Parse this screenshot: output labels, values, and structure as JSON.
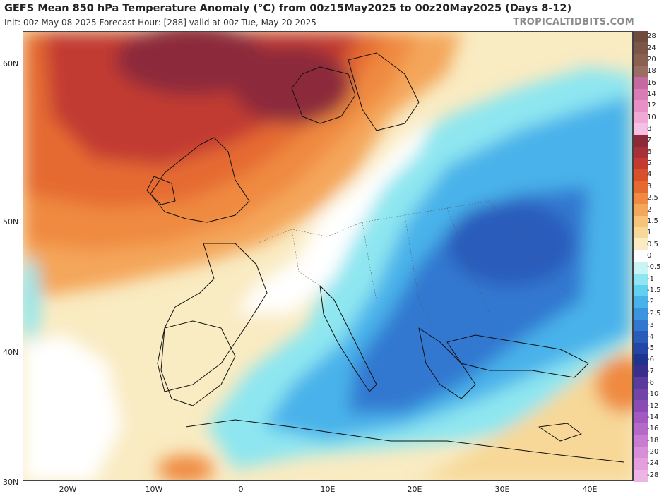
{
  "header": {
    "title": "GEFS Mean 850 hPa Temperature Anomaly (°C) from 00z15May2025 to 00z20May2025 (Days 8-12)",
    "subtitle": "Init: 00z May 08 2025   Forecast Hour: [288]   valid at 00z Tue, May 20 2025",
    "brand": "TROPICALTIDBITS.COM"
  },
  "axes": {
    "lat_labels": [
      "60N",
      "50N",
      "40N",
      "30N"
    ],
    "lon_labels": [
      "20W",
      "10W",
      "0",
      "10E",
      "20E",
      "30E",
      "40E"
    ]
  },
  "colorbar": {
    "labels": [
      "28",
      "24",
      "20",
      "18",
      "16",
      "14",
      "12",
      "10",
      "8",
      "7",
      "6",
      "5",
      "4",
      "3",
      "2.5",
      "2",
      "1.5",
      "1",
      "0.5",
      "0",
      "-0.5",
      "-1",
      "-1.5",
      "-2",
      "-2.5",
      "-3",
      "-4",
      "-5",
      "-6",
      "-7",
      "-8",
      "-10",
      "-12",
      "-14",
      "-16",
      "-18",
      "-20",
      "-24",
      "-28"
    ],
    "colors": [
      "#6e4c3e",
      "#7c5646",
      "#8a6050",
      "#9a6e62",
      "#c46aa0",
      "#d97cb6",
      "#e690c6",
      "#f0a8d6",
      "#f6c0e4",
      "#8c2a3a",
      "#a8303a",
      "#c23a30",
      "#d8502a",
      "#e56a30",
      "#ef8a40",
      "#f4a65a",
      "#f7c27a",
      "#f7d898",
      "#f9ebc2",
      "#ffffff",
      "#c8f4f6",
      "#8ee6f0",
      "#62d0ee",
      "#48b2ea",
      "#3a94e0",
      "#3278d0",
      "#2a5cbc",
      "#2446a6",
      "#1e3590",
      "#3a2e8c",
      "#5a3c9e",
      "#7244a8",
      "#8a4cb4",
      "#a25ac0",
      "#b66ac8",
      "#c87cd2",
      "#d88ed8",
      "#e4a0de",
      "#eeb4e4"
    ]
  },
  "map": {
    "description_colors": {
      "strong_warm": "#8c2a3a",
      "warm": "#d8502a",
      "mild": "#f7d898",
      "neutral": "#ffffff",
      "cool": "#62d0ee",
      "cold": "#3278d0",
      "very_cold": "#2446a6"
    }
  }
}
